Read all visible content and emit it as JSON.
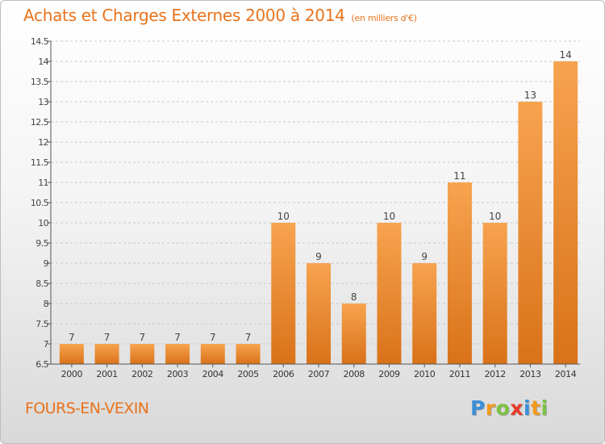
{
  "header": {
    "title": "Achats et Charges Externes 2000 à 2014",
    "unit": "(en milliers d'€)"
  },
  "footer": {
    "place": "FOURS-EN-VEXIN",
    "logo": {
      "text": "Proxiti",
      "letters": [
        {
          "char": "P",
          "color": "#3b8fd8"
        },
        {
          "char": "r",
          "color": "#f39a1e"
        },
        {
          "char": "o",
          "color": "#7cc242"
        },
        {
          "char": "x",
          "color": "#e8392a"
        },
        {
          "char": "i",
          "color": "#3b8fd8"
        },
        {
          "char": "t",
          "color": "#f39a1e"
        },
        {
          "char": "i",
          "color": "#7cc242"
        }
      ]
    }
  },
  "colors": {
    "accent": "#e8731c",
    "bar_top": "#f7a34f",
    "bar_bottom": "#d97219",
    "grid": "#c9c9c9"
  },
  "chart_data": {
    "type": "bar",
    "title": "Achats et Charges Externes 2000 à 2014",
    "subtitle": "(en milliers d'€)",
    "xlabel": "",
    "ylabel": "",
    "categories": [
      "2000",
      "2001",
      "2002",
      "2003",
      "2004",
      "2005",
      "2006",
      "2007",
      "2008",
      "2009",
      "2010",
      "2011",
      "2012",
      "2013",
      "2014"
    ],
    "values": [
      7,
      7,
      7,
      7,
      7,
      7,
      10,
      9,
      8,
      10,
      9,
      11,
      10,
      13,
      14
    ],
    "data_labels": [
      "7",
      "7",
      "7",
      "7",
      "7",
      "7",
      "10",
      "9",
      "8",
      "10",
      "9",
      "11",
      "10",
      "13",
      "14"
    ],
    "ylim": [
      6.5,
      14.5
    ],
    "yticks": [
      6.5,
      7,
      7.5,
      8,
      8.5,
      9,
      9.5,
      10,
      10.5,
      11,
      11.5,
      12,
      12.5,
      13,
      13.5,
      14,
      14.5
    ],
    "ytick_labels": [
      "6.5",
      "7",
      "7.5",
      "8",
      "8.5",
      "9",
      "9.5",
      "10",
      "10.5",
      "11",
      "11.5",
      "12",
      "12.5",
      "13",
      "13.5",
      "14",
      "14.5"
    ],
    "grid": true,
    "legend": "none"
  }
}
